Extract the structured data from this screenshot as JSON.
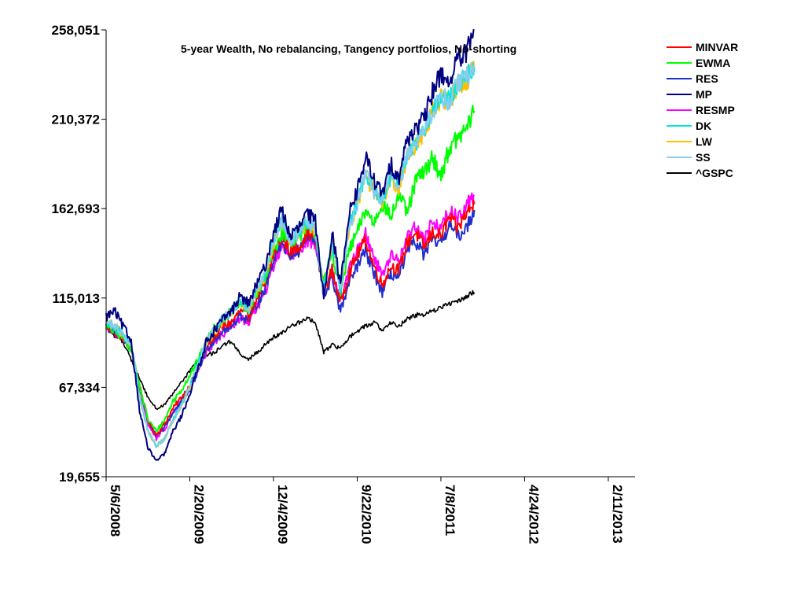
{
  "chart_data": {
    "type": "line",
    "title": "5-year Wealth, No rebalancing, Tangency portfolios, No-shorting",
    "xlabel": "",
    "ylabel": "",
    "ylim": [
      19655,
      258051
    ],
    "y_ticks": [
      19655,
      67334,
      115013,
      162693,
      210372,
      258051
    ],
    "y_tick_labels": [
      "19,655",
      "67,334",
      "115,013",
      "162,693",
      "210,372",
      "258,051"
    ],
    "x_range": [
      0,
      1264
    ],
    "x_ticks": [
      0,
      200,
      400,
      600,
      800,
      1000,
      1200
    ],
    "x_tick_labels": [
      "5/6/2008",
      "2/20/2009",
      "12/4/2009",
      "9/22/2010",
      "7/8/2011",
      "4/24/2012",
      "2/11/2013"
    ],
    "legend_position": "top-right",
    "x_step": 20,
    "series": [
      {
        "name": "MINVAR",
        "color": "#ff0000",
        "values": [
          100000,
          97000,
          94000,
          88000,
          68000,
          50000,
          42000,
          48000,
          56000,
          62000,
          68000,
          78000,
          90000,
          95000,
          100000,
          102000,
          108000,
          105000,
          115000,
          122000,
          138000,
          148000,
          140000,
          142000,
          150000,
          148000,
          118000,
          130000,
          112000,
          128000,
          138000,
          146000,
          132000,
          122000,
          132000,
          130000,
          145000,
          150000,
          142000,
          150000,
          148000,
          158000,
          152000,
          160000,
          165000
        ]
      },
      {
        "name": "EWMA",
        "color": "#00ff00",
        "values": [
          100000,
          97000,
          94000,
          88000,
          68000,
          50000,
          44000,
          50000,
          60000,
          66000,
          74000,
          82000,
          92000,
          100000,
          104000,
          108000,
          112000,
          108000,
          118000,
          124000,
          140000,
          150000,
          145000,
          148000,
          152000,
          150000,
          122000,
          140000,
          118000,
          140000,
          150000,
          162000,
          155000,
          166000,
          158000,
          170000,
          160000,
          178000,
          182000,
          190000,
          180000,
          195000,
          200000,
          205000,
          215000
        ]
      },
      {
        "name": "RES",
        "color": "#1f2fcf",
        "values": [
          100000,
          97000,
          94000,
          88000,
          67000,
          50000,
          41000,
          46000,
          54000,
          60000,
          66000,
          76000,
          88000,
          93000,
          98000,
          100000,
          106000,
          103000,
          112000,
          120000,
          136000,
          145000,
          138000,
          140000,
          148000,
          145000,
          116000,
          126000,
          108000,
          122000,
          132000,
          140000,
          128000,
          118000,
          128000,
          126000,
          140000,
          145000,
          138000,
          146000,
          144000,
          154000,
          148000,
          152000,
          162000
        ]
      },
      {
        "name": "MP",
        "color": "#000080",
        "values": [
          105000,
          108000,
          100000,
          92000,
          55000,
          35000,
          28000,
          32000,
          44000,
          52000,
          64000,
          78000,
          92000,
          98000,
          104000,
          108000,
          116000,
          112000,
          122000,
          132000,
          150000,
          162000,
          148000,
          152000,
          160000,
          156000,
          116000,
          150000,
          122000,
          160000,
          172000,
          190000,
          178000,
          170000,
          186000,
          180000,
          200000,
          206000,
          210000,
          225000,
          235000,
          230000,
          242000,
          245000,
          258051
        ]
      },
      {
        "name": "RESMP",
        "color": "#ff00ff",
        "values": [
          100000,
          97000,
          94000,
          88000,
          66000,
          48000,
          40000,
          45000,
          54000,
          60000,
          66000,
          76000,
          86000,
          92000,
          96000,
          100000,
          104000,
          102000,
          110000,
          118000,
          132000,
          144000,
          138000,
          140000,
          146000,
          144000,
          118000,
          130000,
          114000,
          130000,
          140000,
          150000,
          136000,
          128000,
          138000,
          134000,
          148000,
          154000,
          146000,
          156000,
          152000,
          162000,
          158000,
          164000,
          170000
        ]
      },
      {
        "name": "DK",
        "color": "#00e5e5",
        "values": [
          102000,
          100000,
          96000,
          90000,
          62000,
          44000,
          36000,
          40000,
          50000,
          58000,
          68000,
          80000,
          92000,
          98000,
          104000,
          108000,
          114000,
          110000,
          120000,
          128000,
          146000,
          156000,
          146000,
          150000,
          156000,
          152000,
          118000,
          145000,
          120000,
          152000,
          165000,
          182000,
          172000,
          168000,
          180000,
          175000,
          192000,
          198000,
          205000,
          215000,
          222000,
          220000,
          230000,
          232000,
          238000
        ]
      },
      {
        "name": "LW",
        "color": "#ffc000",
        "values": [
          102000,
          100000,
          96000,
          90000,
          62000,
          44000,
          36000,
          40000,
          50000,
          58000,
          67000,
          79000,
          91000,
          97000,
          103000,
          107000,
          113000,
          109000,
          119000,
          127000,
          145000,
          155000,
          145000,
          149000,
          155000,
          151000,
          118000,
          144000,
          120000,
          151000,
          164000,
          181000,
          171000,
          167000,
          179000,
          174000,
          191000,
          197000,
          204000,
          214000,
          221000,
          219000,
          229000,
          231000,
          237000
        ]
      },
      {
        "name": "SS",
        "color": "#87ceeb",
        "values": [
          102000,
          100000,
          96000,
          90000,
          62000,
          44000,
          36000,
          40000,
          50000,
          58000,
          68000,
          80000,
          92000,
          98000,
          104000,
          108000,
          114000,
          110000,
          120000,
          128000,
          146000,
          156000,
          146000,
          150000,
          156000,
          152000,
          118000,
          145000,
          120000,
          152000,
          165000,
          182000,
          172000,
          168000,
          180000,
          175000,
          192000,
          198000,
          205000,
          215000,
          222000,
          220000,
          230000,
          232000,
          238000
        ]
      },
      {
        "name": "^GSPC",
        "color": "#000000",
        "values": [
          100000,
          95000,
          92000,
          82000,
          72000,
          62000,
          56000,
          58000,
          64000,
          70000,
          76000,
          82000,
          84000,
          86000,
          90000,
          92000,
          85000,
          82000,
          86000,
          90000,
          94000,
          96000,
          100000,
          102000,
          104000,
          102000,
          86000,
          90000,
          88000,
          94000,
          97000,
          100000,
          102000,
          98000,
          102000,
          100000,
          104000,
          106000,
          106000,
          108000,
          110000,
          112000,
          113000,
          116000,
          118000
        ]
      }
    ]
  }
}
